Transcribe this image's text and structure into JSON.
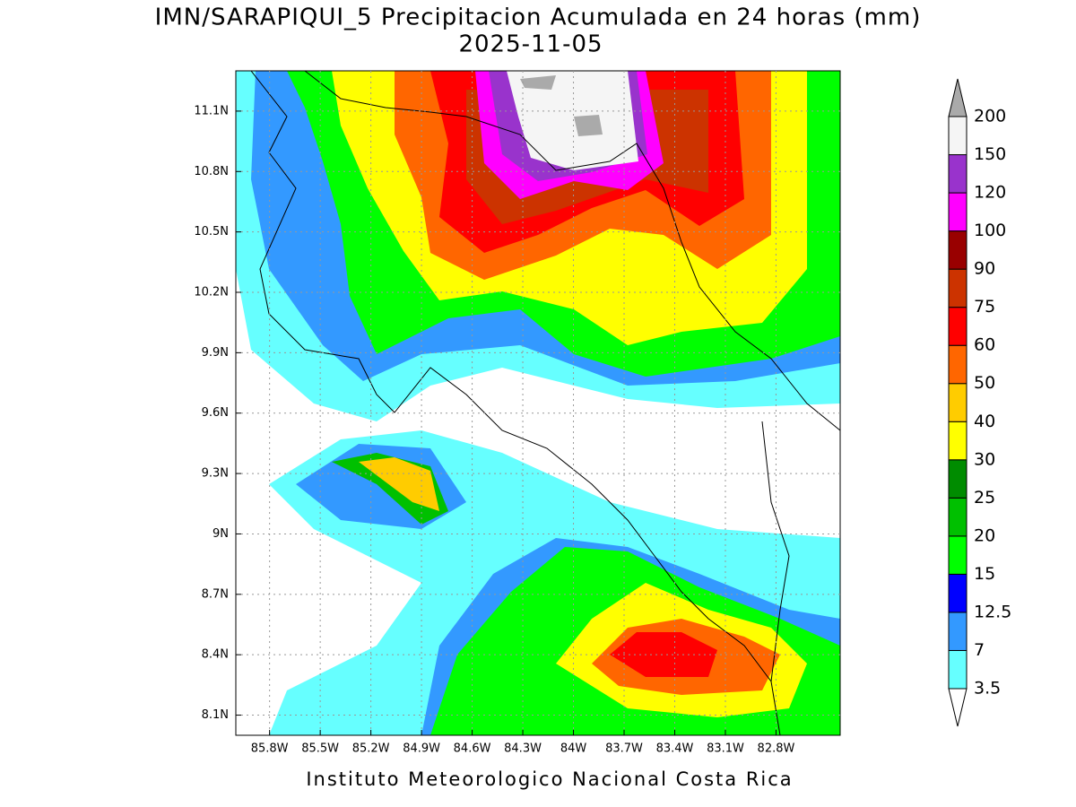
{
  "title": "IMN/SARAPIQUI_5 Precipitacion Acumulada en 24 horas (mm)",
  "subtitle": "2025-11-05",
  "map": {
    "lat_range": [
      8.0,
      11.3
    ],
    "lon_range": [
      -86.0,
      -82.42
    ],
    "lat_ticks": [
      {
        "value": 8.1,
        "label": "8.1N"
      },
      {
        "value": 8.4,
        "label": "8.4N"
      },
      {
        "value": 8.7,
        "label": "8.7N"
      },
      {
        "value": 9.0,
        "label": "9N"
      },
      {
        "value": 9.3,
        "label": "9.3N"
      },
      {
        "value": 9.6,
        "label": "9.6N"
      },
      {
        "value": 9.9,
        "label": "9.9N"
      },
      {
        "value": 10.2,
        "label": "10.2N"
      },
      {
        "value": 10.5,
        "label": "10.5N"
      },
      {
        "value": 10.8,
        "label": "10.8N"
      },
      {
        "value": 11.1,
        "label": "11.1N"
      }
    ],
    "lon_ticks": [
      {
        "value": -85.8,
        "label": "85.8W"
      },
      {
        "value": -85.5,
        "label": "85.5W"
      },
      {
        "value": -85.2,
        "label": "85.2W"
      },
      {
        "value": -84.9,
        "label": "84.9W"
      },
      {
        "value": -84.6,
        "label": "84.6W"
      },
      {
        "value": -84.3,
        "label": "84.3W"
      },
      {
        "value": -84.0,
        "label": "84W"
      },
      {
        "value": -83.7,
        "label": "83.7W"
      },
      {
        "value": -83.4,
        "label": "83.4W"
      },
      {
        "value": -83.1,
        "label": "83.1W"
      },
      {
        "value": -82.8,
        "label": "82.8W"
      }
    ],
    "grid": true
  },
  "colorbar": {
    "levels": [
      3.5,
      7,
      12.5,
      15,
      20,
      25,
      30,
      40,
      50,
      60,
      75,
      90,
      100,
      120,
      150,
      200
    ],
    "colors": [
      "#ffffff",
      "#66ffff",
      "#3399ff",
      "#0000ff",
      "#00ff00",
      "#00c000",
      "#008c00",
      "#ffff00",
      "#ffcc00",
      "#ff6600",
      "#ff0000",
      "#cc3300",
      "#990000",
      "#ff00ff",
      "#9933cc",
      "#f5f5f5",
      "#aaaaaa"
    ]
  },
  "credit": "Instituto Meteorologico Nacional Costa Rica"
}
